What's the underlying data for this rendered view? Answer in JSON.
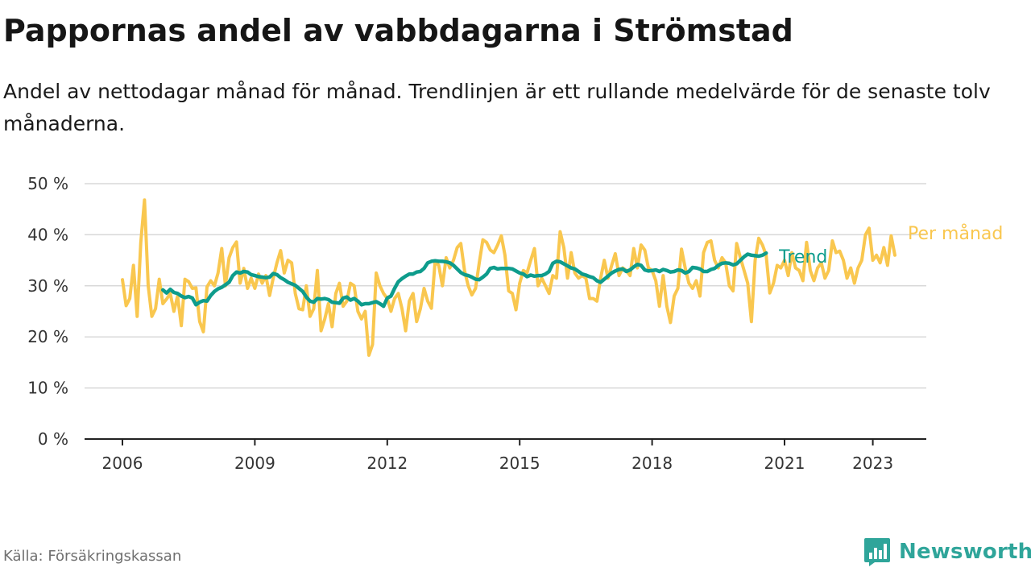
{
  "title": "Pappornas andel av vabbdagarna i Strömstad",
  "subtitle": "Andel av nettodagar månad för månad. Trendlinjen är ett rullande medelvärde för de senaste tolv månaderna.",
  "source": "Källa: Försäkringskassan",
  "brand": "Newsworthy",
  "colors": {
    "per_month": "#F9C74F",
    "trend": "#0E9C8C",
    "brand": "#2FA59A"
  },
  "chart_data": {
    "type": "line",
    "x_start": "2006-01",
    "x_end": "2023-05",
    "x_ticks": [
      "2006",
      "2009",
      "2012",
      "2015",
      "2018",
      "2021",
      "2023"
    ],
    "y_ticks": [
      "0 %",
      "10 %",
      "20 %",
      "30 %",
      "40 %",
      "50 %"
    ],
    "ylim": [
      0,
      50
    ],
    "grid": true,
    "series": [
      {
        "name": "Per månad",
        "values": [
          31.2,
          26.1,
          27.5,
          34.0,
          24.0,
          38.5,
          46.8,
          30.0,
          24.0,
          25.5,
          31.3,
          26.5,
          27.4,
          28.5,
          25.0,
          28.0,
          22.2,
          31.3,
          30.8,
          29.5,
          29.6,
          23.0,
          21.0,
          29.8,
          31.0,
          30.0,
          32.5,
          37.3,
          30.0,
          35.5,
          37.5,
          38.6,
          30.5,
          33.4,
          29.5,
          31.5,
          29.5,
          32.3,
          30.5,
          32.0,
          28.1,
          31.5,
          34.5,
          36.9,
          32.5,
          35.0,
          34.5,
          28.5,
          25.5,
          25.3,
          30.0,
          24.0,
          25.5,
          33.0,
          21.2,
          23.5,
          26.5,
          22.0,
          28.5,
          30.5,
          26.0,
          27.0,
          30.5,
          30.0,
          25.0,
          23.5,
          25.0,
          16.4,
          18.5,
          32.5,
          30.0,
          28.5,
          27.5,
          25.0,
          27.5,
          28.5,
          25.5,
          21.2,
          27.0,
          28.5,
          23.0,
          25.5,
          29.5,
          27.0,
          25.6,
          34.8,
          34.0,
          30.0,
          35.5,
          33.5,
          35.0,
          37.5,
          38.3,
          33.0,
          30.0,
          28.2,
          29.5,
          34.5,
          39.0,
          38.5,
          37.0,
          36.5,
          38.0,
          39.8,
          36.0,
          29.0,
          28.5,
          25.3,
          30.5,
          33.0,
          32.5,
          35.0,
          37.3,
          30.0,
          31.5,
          30.0,
          28.5,
          32.0,
          31.5,
          40.6,
          37.5,
          31.5,
          36.5,
          32.5,
          31.5,
          32.0,
          31.5,
          27.5,
          27.5,
          27.0,
          31.5,
          35.0,
          31.5,
          34.0,
          36.3,
          32.0,
          33.5,
          33.0,
          32.0,
          37.3,
          33.5,
          38.0,
          37.0,
          33.5,
          33.0,
          31.0,
          26.0,
          32.0,
          26.0,
          22.8,
          28.0,
          29.5,
          37.2,
          33.5,
          30.5,
          29.5,
          31.0,
          28.0,
          36.5,
          38.5,
          38.8,
          35.0,
          33.5,
          35.5,
          34.5,
          30.0,
          29.0,
          38.3,
          35.5,
          33.0,
          30.5,
          23.0,
          35.0,
          39.3,
          38.0,
          36.0,
          28.6,
          30.5,
          34.0,
          33.5,
          35.0,
          32.0,
          36.5,
          33.5,
          33.0,
          31.0,
          38.5,
          33.0,
          31.0,
          33.5,
          34.5,
          31.5,
          33.0,
          38.8,
          36.5,
          36.8,
          35.0,
          31.5,
          33.5,
          30.5,
          33.5,
          35.0,
          40.0,
          41.3,
          35.0,
          36.0,
          34.5,
          37.5,
          34.0,
          39.8,
          36.0
        ]
      },
      {
        "name": "Trend",
        "start": "2006-12",
        "values": [
          29.2,
          28.6,
          29.3,
          28.7,
          28.5,
          28.0,
          27.7,
          27.9,
          27.6,
          26.3,
          26.8,
          27.1,
          27.0,
          28.1,
          28.9,
          29.4,
          29.7,
          30.2,
          30.7,
          32.0,
          32.7,
          32.5,
          32.8,
          32.7,
          32.2,
          32.0,
          31.8,
          31.7,
          31.6,
          31.7,
          32.4,
          32.2,
          31.6,
          31.2,
          30.7,
          30.4,
          30.1,
          29.5,
          28.9,
          27.8,
          27.0,
          26.8,
          27.5,
          27.4,
          27.5,
          27.3,
          26.8,
          26.7,
          26.6,
          27.6,
          27.8,
          27.2,
          27.5,
          27.0,
          26.3,
          26.5,
          26.5,
          26.7,
          26.9,
          26.5,
          26.0,
          27.6,
          28.0,
          29.5,
          30.8,
          31.4,
          31.9,
          32.3,
          32.3,
          32.7,
          32.8,
          33.4,
          34.5,
          34.8,
          34.9,
          34.8,
          34.8,
          34.7,
          34.5,
          34.0,
          33.3,
          32.6,
          32.2,
          32.0,
          31.7,
          31.3,
          31.2,
          31.7,
          32.3,
          33.4,
          33.6,
          33.3,
          33.4,
          33.4,
          33.4,
          33.3,
          32.9,
          32.5,
          32.3,
          31.8,
          32.1,
          31.9,
          32.0,
          32.0,
          32.3,
          32.8,
          34.4,
          34.8,
          34.7,
          34.3,
          33.9,
          33.5,
          33.3,
          32.8,
          32.3,
          32.1,
          31.8,
          31.6,
          31.0,
          30.7,
          31.3,
          31.9,
          32.5,
          32.9,
          33.2,
          33.3,
          32.8,
          33.1,
          33.7,
          34.2,
          34.0,
          33.1,
          32.9,
          33.0,
          33.1,
          32.8,
          33.2,
          33.0,
          32.7,
          32.8,
          33.1,
          33.0,
          32.5,
          32.8,
          33.6,
          33.5,
          33.3,
          32.8,
          32.8,
          33.2,
          33.4,
          34.0,
          34.4,
          34.5,
          34.4,
          34.1,
          34.3,
          35.0,
          35.7,
          36.2,
          36.0,
          35.9,
          35.8,
          36.0,
          36.4
        ]
      }
    ]
  }
}
